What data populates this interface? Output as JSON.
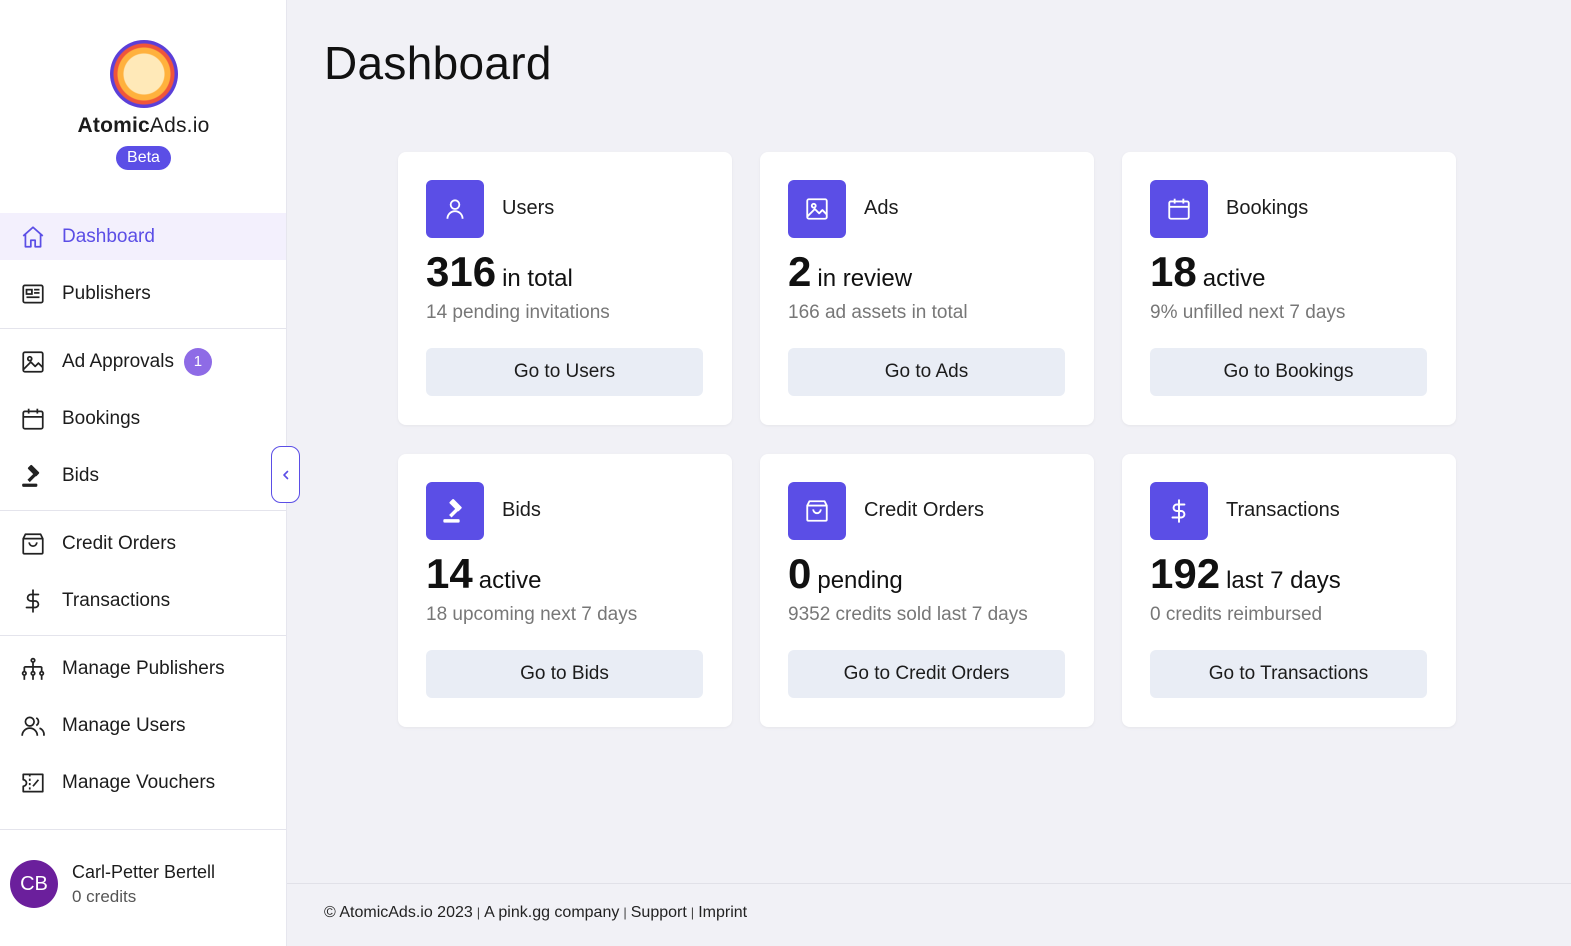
{
  "brand": {
    "name_bold": "Atomic",
    "name_rest": "Ads.io",
    "badge": "Beta"
  },
  "page": {
    "title": "Dashboard"
  },
  "sidebar": {
    "items": [
      {
        "label": "Dashboard",
        "icon": "home-icon",
        "active": true
      },
      {
        "label": "Publishers",
        "icon": "newspaper-icon"
      },
      {
        "label": "Ad Approvals",
        "icon": "image-icon",
        "badge": "1"
      },
      {
        "label": "Bookings",
        "icon": "calendar-icon"
      },
      {
        "label": "Bids",
        "icon": "gavel-icon"
      },
      {
        "label": "Credit Orders",
        "icon": "shopping-bag-icon"
      },
      {
        "label": "Transactions",
        "icon": "dollar-icon"
      },
      {
        "label": "Manage Publishers",
        "icon": "hierarchy-icon"
      },
      {
        "label": "Manage Users",
        "icon": "users-icon"
      },
      {
        "label": "Manage Vouchers",
        "icon": "voucher-icon"
      }
    ],
    "collapse_icon": "chevron-left-icon"
  },
  "user": {
    "initials": "CB",
    "name": "Carl-Petter Bertell",
    "credits": "0 credits"
  },
  "cards": [
    {
      "title": "Users",
      "icon": "user-icon",
      "number": "316",
      "unit": "in total",
      "sub": "14 pending invitations",
      "button": "Go to Users"
    },
    {
      "title": "Ads",
      "icon": "image-icon",
      "number": "2",
      "unit": "in review",
      "sub": "166 ad assets in total",
      "button": "Go to Ads"
    },
    {
      "title": "Bookings",
      "icon": "calendar-icon",
      "number": "18",
      "unit": "active",
      "sub": "9% unfilled next 7 days",
      "button": "Go to Bookings"
    },
    {
      "title": "Bids",
      "icon": "gavel-icon",
      "number": "14",
      "unit": "active",
      "sub": "18 upcoming next 7 days",
      "button": "Go to Bids"
    },
    {
      "title": "Credit Orders",
      "icon": "shopping-bag-icon",
      "number": "0",
      "unit": "pending",
      "sub": "9352 credits sold last 7 days",
      "button": "Go to Credit Orders"
    },
    {
      "title": "Transactions",
      "icon": "dollar-icon",
      "number": "192",
      "unit": "last 7 days",
      "sub": "0 credits reimbursed",
      "button": "Go to Transactions"
    }
  ],
  "footer": {
    "copyright": "© AtomicAds.io 2023",
    "company": "A pink.gg company",
    "support": "Support",
    "imprint": "Imprint",
    "separator": "|"
  },
  "colors": {
    "accent": "#5b4ee6",
    "badge": "#8e6be6",
    "avatar": "#6b1f9c",
    "background": "#f1f1f6"
  }
}
